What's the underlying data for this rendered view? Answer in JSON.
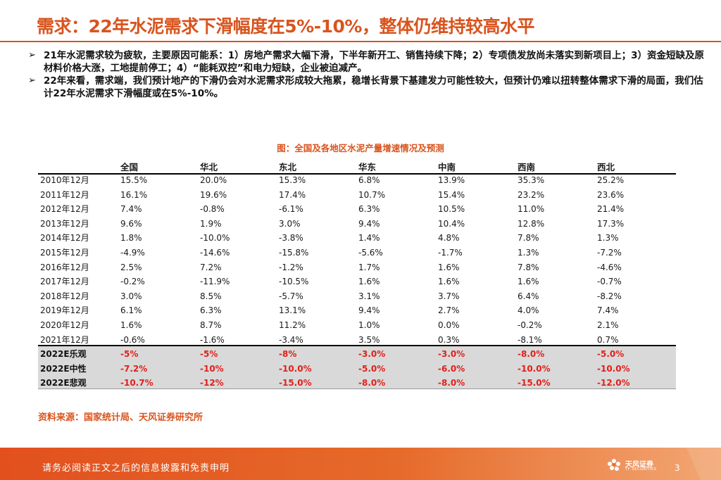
{
  "title": "需求：22年水泥需求下滑幅度在5%-10%，整体仍维持较高水平",
  "bullets": [
    "21年水泥需求较为疲软，主要原因可能系：1）房地产需求大幅下滑，下半年新开工、销售持续下降；2）专项债发放尚未落实到新项目上；3）资金短缺及原材料价格大涨，工地提前停工；4）“能耗双控”和电力短缺，企业被迫减产。",
    "22年来看，需求端，我们预计地产的下滑仍会对水泥需求形成较大拖累，稳增长背景下基建发力可能性较大，但预计仍难以扭转整体需求下滑的局面，我们估计22年水泥需求下滑幅度或在5%-10%。"
  ],
  "bullet_marker": "➢",
  "table": {
    "caption": "图：全国及各地区水泥产量增速情况及预测",
    "headers": [
      "",
      "全国",
      "华北",
      "东北",
      "华东",
      "中南",
      "西南",
      "西北"
    ],
    "rows": [
      [
        "2010年12月",
        "15.5%",
        "20.0%",
        "15.3%",
        "6.8%",
        "13.9%",
        "35.3%",
        "25.2%"
      ],
      [
        "2011年12月",
        "16.1%",
        "19.6%",
        "17.4%",
        "10.7%",
        "15.4%",
        "23.2%",
        "23.6%"
      ],
      [
        "2012年12月",
        "7.4%",
        "-0.8%",
        "-6.1%",
        "6.3%",
        "10.5%",
        "11.0%",
        "21.4%"
      ],
      [
        "2013年12月",
        "9.6%",
        "1.9%",
        "3.0%",
        "9.4%",
        "10.4%",
        "12.8%",
        "17.3%"
      ],
      [
        "2014年12月",
        "1.8%",
        "-10.0%",
        "-3.8%",
        "1.4%",
        "4.8%",
        "7.8%",
        "1.3%"
      ],
      [
        "2015年12月",
        "-4.9%",
        "-14.6%",
        "-15.8%",
        "-5.6%",
        "-1.7%",
        "1.3%",
        "-7.2%"
      ],
      [
        "2016年12月",
        "2.5%",
        "7.2%",
        "-1.2%",
        "1.7%",
        "1.6%",
        "7.8%",
        "-4.6%"
      ],
      [
        "2017年12月",
        "-0.2%",
        "-11.9%",
        "-10.5%",
        "1.6%",
        "1.6%",
        "1.6%",
        "-0.7%"
      ],
      [
        "2018年12月",
        "3.0%",
        "8.5%",
        "-5.7%",
        "3.1%",
        "3.7%",
        "6.4%",
        "-8.2%"
      ],
      [
        "2019年12月",
        "6.1%",
        "6.3%",
        "13.1%",
        "9.4%",
        "2.7%",
        "4.0%",
        "7.4%"
      ],
      [
        "2020年12月",
        "1.6%",
        "8.7%",
        "11.2%",
        "1.0%",
        "0.0%",
        "-0.2%",
        "2.1%"
      ],
      [
        "2021年12月",
        "-0.6%",
        "-1.6%",
        "-3.4%",
        "3.5%",
        "0.3%",
        "-8.1%",
        "0.7%"
      ]
    ],
    "forecast_rows": [
      [
        "2022E乐观",
        "-5%",
        "-5%",
        "-8%",
        "-3.0%",
        "-3.0%",
        "-8.0%",
        "-5.0%"
      ],
      [
        "2022E中性",
        "-7.2%",
        "-10%",
        "-10.0%",
        "-5.0%",
        "-6.0%",
        "-10.0%",
        "-10.0%"
      ],
      [
        "2022E悲观",
        "-10.7%",
        "-12%",
        "-15.0%",
        "-8.0%",
        "-8.0%",
        "-15.0%",
        "-12.0%"
      ]
    ]
  },
  "source": "资料来源：国家统计局、天风证券研究所",
  "footer": {
    "disclaimer": "请务必阅读正文之后的信息披露和免责申明",
    "logo_name": "天风证券",
    "logo_sub": "TF SECURITIES",
    "page_number": "3"
  },
  "colors": {
    "accent": "#d9541e",
    "forecast_red": "#e0201a",
    "forecast_bg": "#d9d9d9"
  }
}
